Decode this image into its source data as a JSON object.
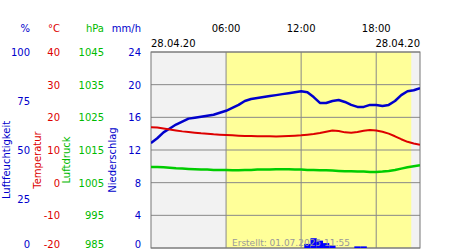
{
  "chart_data": {
    "type": "line",
    "x_start_label": "28.04.20",
    "x_end_label": "28.04.20",
    "footer": "Erstellt: 01.07.2025 11:55",
    "xlim": [
      0,
      21.5
    ],
    "xticks": [
      {
        "value": 6,
        "label": "06:00"
      },
      {
        "value": 12,
        "label": "12:00"
      },
      {
        "value": 18,
        "label": "18:00"
      }
    ],
    "daylight": [
      6,
      20.8
    ],
    "grid": true,
    "axes": {
      "y": {
        "title": "Luftfeuchtigkeit",
        "unit": "%",
        "color": "#0000cc",
        "lim": [
          0,
          100
        ],
        "ticks": [
          0,
          25,
          50,
          75,
          100
        ]
      },
      "y2": {
        "title": "Temperatur",
        "unit": "°C",
        "color": "#dd0000",
        "lim": [
          -20,
          40
        ],
        "ticks": [
          -20,
          -10,
          0,
          10,
          20,
          30,
          40
        ]
      },
      "y3": {
        "title": "Luftdruck",
        "unit": "hPa",
        "color": "#00bb00",
        "lim": [
          985,
          1045
        ],
        "ticks": [
          985,
          995,
          1005,
          1015,
          1025,
          1035,
          1045
        ]
      },
      "y4": {
        "title": "Niederschlag",
        "unit": "mm/h",
        "color": "#0000cc",
        "lim": [
          0,
          24
        ],
        "ticks": [
          0,
          4,
          8,
          12,
          16,
          20,
          24
        ]
      }
    },
    "x": [
      0,
      0.5,
      1,
      1.5,
      2,
      2.5,
      3,
      3.5,
      4,
      4.5,
      5,
      5.5,
      6,
      6.5,
      7,
      7.5,
      8,
      8.5,
      9,
      9.5,
      10,
      10.5,
      11,
      11.5,
      12,
      12.5,
      13,
      13.5,
      14,
      14.5,
      15,
      15.5,
      16,
      16.5,
      17,
      17.5,
      18,
      18.5,
      19,
      19.5,
      20,
      20.5,
      21,
      21.5
    ],
    "series": [
      {
        "name": "Luftfeuchtigkeit",
        "axis": "y",
        "type": "line",
        "color": "#0000cc",
        "values": [
          53.5,
          56,
          59,
          61,
          63,
          64.5,
          66,
          66.5,
          67,
          67.5,
          68,
          69,
          70,
          71.5,
          73,
          75,
          76,
          76.5,
          77,
          77.5,
          78,
          78.5,
          79,
          79.5,
          80,
          79.5,
          77,
          74,
          74,
          75,
          75.5,
          74.5,
          73,
          72,
          72,
          73,
          73,
          72.5,
          73,
          75,
          78,
          80,
          80.5,
          81.5
        ]
      },
      {
        "name": "Temperatur",
        "axis": "y2",
        "type": "line",
        "color": "#dd0000",
        "values": [
          17.0,
          16.9,
          16.6,
          16.3,
          16.0,
          15.7,
          15.5,
          15.3,
          15.1,
          15.0,
          14.8,
          14.7,
          14.6,
          14.5,
          14.4,
          14.3,
          14.3,
          14.2,
          14.2,
          14.2,
          14.1,
          14.2,
          14.3,
          14.4,
          14.5,
          14.7,
          14.9,
          15.2,
          15.6,
          16.0,
          15.8,
          15.4,
          15.3,
          15.5,
          15.9,
          16.1,
          16.0,
          15.6,
          15.0,
          14.2,
          13.3,
          12.5,
          12.0,
          11.6
        ]
      },
      {
        "name": "Luftdruck",
        "axis": "y3",
        "type": "line",
        "color": "#00cc00",
        "values": [
          1009.8,
          1009.8,
          1009.7,
          1009.6,
          1009.4,
          1009.3,
          1009.2,
          1009.1,
          1009.0,
          1009.0,
          1008.9,
          1008.9,
          1008.9,
          1008.8,
          1008.8,
          1008.9,
          1008.9,
          1009.0,
          1009.0,
          1009.0,
          1009.1,
          1009.1,
          1009.1,
          1009.0,
          1009.0,
          1008.9,
          1008.9,
          1008.8,
          1008.8,
          1008.7,
          1008.6,
          1008.5,
          1008.5,
          1008.4,
          1008.4,
          1008.3,
          1008.3,
          1008.4,
          1008.6,
          1008.9,
          1009.3,
          1009.7,
          1010.0,
          1010.3
        ]
      },
      {
        "name": "Niederschlag",
        "axis": "y4",
        "type": "bar",
        "color": "#0000ff",
        "values": [
          0,
          0,
          0,
          0,
          0,
          0,
          0,
          0,
          0,
          0,
          0,
          0,
          0,
          0,
          0,
          0,
          0,
          0,
          0,
          0,
          0,
          0,
          0,
          0,
          0,
          0.5,
          1.2,
          0.9,
          0.6,
          0.3,
          0,
          0,
          0,
          0.2,
          0.2,
          0,
          0,
          0,
          0,
          0,
          0,
          0,
          0,
          0
        ]
      }
    ]
  }
}
